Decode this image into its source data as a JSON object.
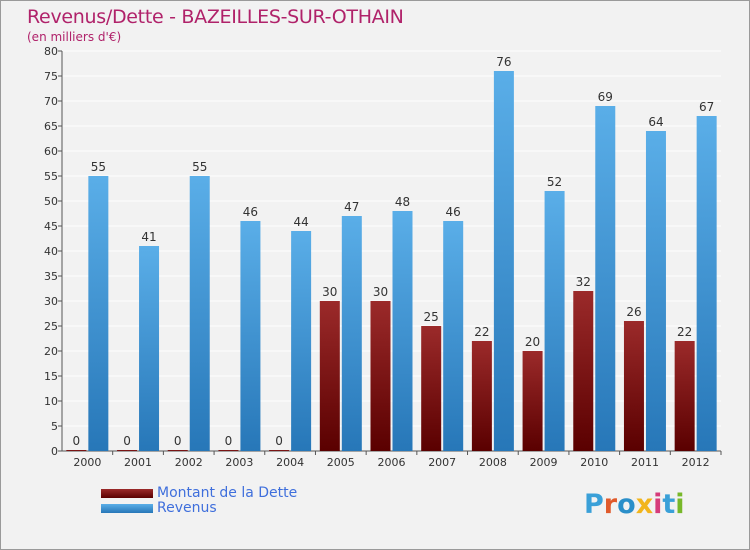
{
  "title": "Revenus/Dette - BAZEILLES-SUR-OTHAIN",
  "subtitle": "(en milliers d'€)",
  "legend": {
    "items": [
      {
        "label": "Montant de la Dette"
      },
      {
        "label": "Revenus"
      }
    ]
  },
  "logo": {
    "text": "Proxiti",
    "colors": [
      "#3aa0d8",
      "#e05a2b",
      "#2b8fc9",
      "#f2b51c",
      "#d63c7a",
      "#3aa0d8",
      "#78b82a"
    ]
  },
  "colors": {
    "dette_light": "#9b2a2a",
    "dette_dark": "#5a0000",
    "revenus_light": "#5aaee8",
    "revenus_dark": "#2777b8",
    "grid": "#ffffff",
    "axis_text": "#333333"
  },
  "chart_data": {
    "type": "bar",
    "categories": [
      "2000",
      "2001",
      "2002",
      "2003",
      "2004",
      "2005",
      "2006",
      "2007",
      "2008",
      "2009",
      "2010",
      "2011",
      "2012"
    ],
    "series": [
      {
        "name": "Montant de la Dette",
        "values": [
          0,
          0,
          0,
          0,
          0,
          30,
          30,
          25,
          22,
          20,
          32,
          26,
          22
        ]
      },
      {
        "name": "Revenus",
        "values": [
          55,
          41,
          55,
          46,
          44,
          47,
          48,
          46,
          76,
          52,
          69,
          64,
          67
        ]
      }
    ],
    "title": "Revenus/Dette - BAZEILLES-SUR-OTHAIN",
    "subtitle": "(en milliers d'€)",
    "xlabel": "",
    "ylabel": "",
    "ylim": [
      0,
      80
    ],
    "yticks": [
      0,
      5,
      10,
      15,
      20,
      25,
      30,
      35,
      40,
      45,
      50,
      55,
      60,
      65,
      70,
      75,
      80
    ],
    "grid": true,
    "legend_position": "bottom-left"
  }
}
